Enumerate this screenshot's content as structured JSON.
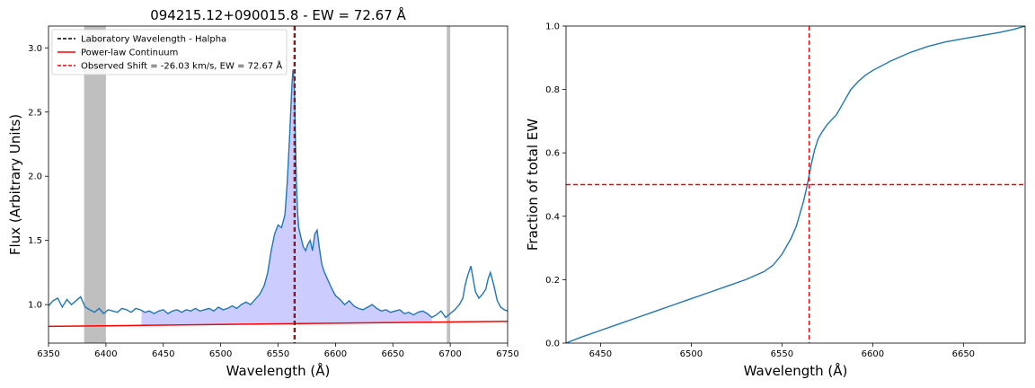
{
  "colors": {
    "spectrum": "#1f77b4",
    "continuum": "#ff0000",
    "lab_line": "#000000",
    "observed_line": "#ff0000",
    "ew_fill": "#ccccff",
    "masked_region": "#bfbfbf"
  },
  "chart_data": [
    {
      "type": "line",
      "title": "094215.12+090015.8 - EW = 72.67 Å",
      "xlabel": "Wavelength (Å)",
      "ylabel": "Flux (Arbitrary Units)",
      "xlim": [
        6350,
        6750
      ],
      "ylim": [
        0.7,
        3.17
      ],
      "xticks": [
        6350,
        6400,
        6450,
        6500,
        6550,
        6600,
        6650,
        6700,
        6750
      ],
      "yticks": [
        1.0,
        1.5,
        2.0,
        2.5,
        3.0
      ],
      "ytick_labels": [
        "1.0",
        "1.5",
        "2.0",
        "2.5",
        "3.0"
      ],
      "legend_position": "upper-left",
      "legend": [
        {
          "label": "Laboratory Wavelength - Halpha",
          "style": "dashed",
          "color": "#000000"
        },
        {
          "label": "Power-law Continuum",
          "style": "solid",
          "color": "#ff0000"
        },
        {
          "label": "Observed Shift = -26.03 km/s, EW = 72.67 Å",
          "style": "dashed",
          "color": "#ff0000"
        }
      ],
      "masked_regions": [
        [
          6381,
          6400
        ],
        [
          6697,
          6700
        ]
      ],
      "ew_fill_range": [
        6431,
        6684
      ],
      "lab_wavelength": 6564.6,
      "observed_wavelength": 6564.0,
      "continuum": {
        "x": [
          6350,
          6750
        ],
        "y": [
          0.83,
          0.87
        ]
      },
      "spectrum": {
        "x": [
          6350,
          6354,
          6358,
          6362,
          6366,
          6370,
          6374,
          6378,
          6382,
          6386,
          6390,
          6394,
          6398,
          6402,
          6406,
          6410,
          6414,
          6418,
          6422,
          6426,
          6430,
          6434,
          6438,
          6442,
          6446,
          6450,
          6454,
          6458,
          6462,
          6466,
          6470,
          6474,
          6478,
          6482,
          6486,
          6490,
          6494,
          6498,
          6502,
          6506,
          6510,
          6514,
          6518,
          6522,
          6526,
          6530,
          6534,
          6538,
          6541,
          6544,
          6547,
          6550,
          6553,
          6556,
          6558,
          6560,
          6562,
          6563,
          6564,
          6565,
          6566,
          6567,
          6568,
          6570,
          6572,
          6574,
          6576,
          6578,
          6580,
          6582,
          6584,
          6586,
          6588,
          6590,
          6593,
          6596,
          6600,
          6604,
          6608,
          6612,
          6616,
          6620,
          6624,
          6628,
          6632,
          6636,
          6640,
          6644,
          6648,
          6652,
          6656,
          6660,
          6664,
          6668,
          6672,
          6676,
          6680,
          6684,
          6688,
          6692,
          6696,
          6700,
          6704,
          6708,
          6711,
          6713,
          6715,
          6718,
          6720,
          6722,
          6725,
          6728,
          6731,
          6733,
          6735,
          6738,
          6741,
          6744,
          6747,
          6750
        ],
        "y": [
          0.99,
          1.03,
          1.05,
          0.98,
          1.04,
          1.0,
          1.03,
          1.06,
          0.98,
          0.96,
          0.94,
          0.97,
          0.93,
          0.96,
          0.95,
          0.94,
          0.97,
          0.96,
          0.94,
          0.97,
          0.96,
          0.94,
          0.95,
          0.93,
          0.95,
          0.96,
          0.93,
          0.95,
          0.96,
          0.94,
          0.96,
          0.95,
          0.97,
          0.95,
          0.96,
          0.97,
          0.95,
          0.98,
          0.96,
          0.97,
          0.99,
          0.97,
          1.0,
          1.02,
          1.0,
          1.04,
          1.08,
          1.15,
          1.25,
          1.42,
          1.55,
          1.62,
          1.6,
          1.7,
          1.95,
          2.3,
          2.7,
          2.83,
          2.75,
          2.35,
          1.95,
          1.72,
          1.6,
          1.52,
          1.45,
          1.42,
          1.47,
          1.5,
          1.42,
          1.55,
          1.58,
          1.44,
          1.32,
          1.26,
          1.2,
          1.14,
          1.07,
          1.04,
          1.0,
          1.03,
          0.99,
          0.97,
          0.96,
          0.98,
          1.0,
          0.97,
          0.95,
          0.96,
          0.94,
          0.95,
          0.96,
          0.93,
          0.94,
          0.92,
          0.94,
          0.95,
          0.93,
          0.9,
          0.92,
          0.95,
          0.9,
          0.93,
          0.96,
          1.0,
          1.05,
          1.15,
          1.22,
          1.3,
          1.2,
          1.1,
          1.05,
          1.08,
          1.12,
          1.2,
          1.25,
          1.15,
          1.03,
          0.98,
          0.96,
          0.95
        ]
      }
    },
    {
      "type": "line",
      "title": "",
      "xlabel": "Wavelength (Å)",
      "ylabel": "Fraction of total EW",
      "xlim": [
        6431,
        6684
      ],
      "ylim": [
        0.0,
        1.0
      ],
      "xticks": [
        6450,
        6500,
        6550,
        6600,
        6650
      ],
      "yticks": [
        0.0,
        0.2,
        0.4,
        0.6,
        0.8,
        1.0
      ],
      "ytick_labels": [
        "0.0",
        "0.2",
        "0.4",
        "0.6",
        "0.8",
        "1.0"
      ],
      "half_level": 0.5,
      "half_wavelength": 6565,
      "series": {
        "x": [
          6431,
          6440,
          6450,
          6460,
          6470,
          6480,
          6490,
          6500,
          6510,
          6520,
          6530,
          6540,
          6545,
          6550,
          6555,
          6558,
          6560,
          6562,
          6564,
          6566,
          6568,
          6570,
          6572,
          6575,
          6580,
          6585,
          6588,
          6592,
          6596,
          6600,
          6610,
          6620,
          6630,
          6640,
          6650,
          6660,
          6670,
          6678,
          6684
        ],
        "y": [
          0.0,
          0.02,
          0.04,
          0.06,
          0.08,
          0.1,
          0.12,
          0.14,
          0.16,
          0.18,
          0.2,
          0.225,
          0.245,
          0.28,
          0.33,
          0.37,
          0.41,
          0.45,
          0.5,
          0.56,
          0.61,
          0.645,
          0.665,
          0.69,
          0.72,
          0.77,
          0.8,
          0.825,
          0.845,
          0.86,
          0.89,
          0.915,
          0.935,
          0.95,
          0.96,
          0.97,
          0.98,
          0.99,
          1.0
        ]
      }
    }
  ]
}
